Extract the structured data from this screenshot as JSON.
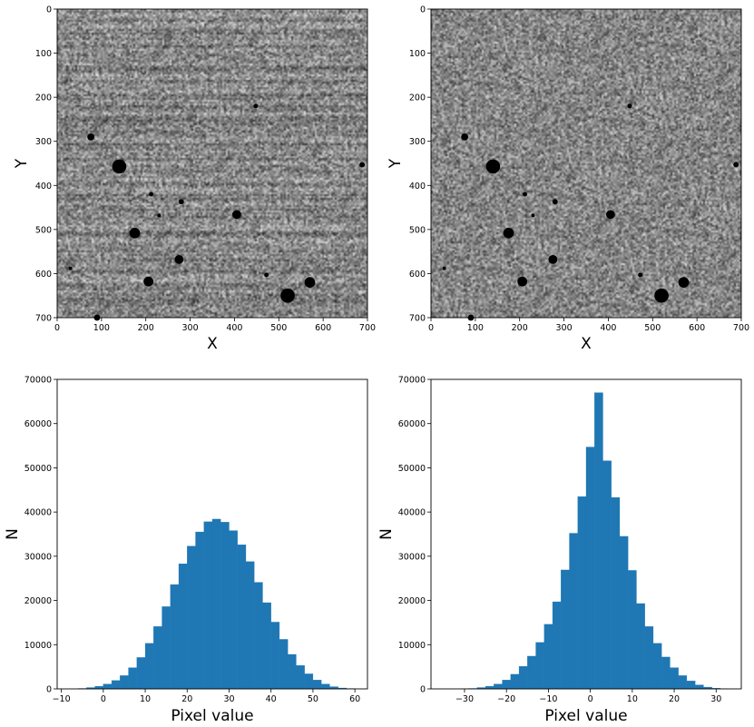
{
  "chart_data": [
    {
      "type": "heatmap",
      "title": "",
      "xlabel": "X",
      "ylabel": "Y",
      "xlim": [
        0,
        700
      ],
      "ylim": [
        700,
        0
      ],
      "xticks": [
        0,
        100,
        200,
        300,
        400,
        500,
        600,
        700
      ],
      "yticks": [
        0,
        100,
        200,
        300,
        400,
        500,
        600,
        700
      ],
      "colormap": "gray",
      "background": "striped noise",
      "sources": [
        {
          "x": 140,
          "y": 357,
          "r": 16
        },
        {
          "x": 520,
          "y": 650,
          "r": 16
        },
        {
          "x": 175,
          "y": 508,
          "r": 12
        },
        {
          "x": 570,
          "y": 620,
          "r": 12
        },
        {
          "x": 206,
          "y": 618,
          "r": 11
        },
        {
          "x": 405,
          "y": 466,
          "r": 10
        },
        {
          "x": 275,
          "y": 568,
          "r": 10
        },
        {
          "x": 76,
          "y": 290,
          "r": 8
        },
        {
          "x": 280,
          "y": 437,
          "r": 6
        },
        {
          "x": 212,
          "y": 420,
          "r": 5
        },
        {
          "x": 472,
          "y": 603,
          "r": 5
        },
        {
          "x": 448,
          "y": 220,
          "r": 5
        },
        {
          "x": 688,
          "y": 353,
          "r": 6
        },
        {
          "x": 90,
          "y": 700,
          "r": 7
        },
        {
          "x": 230,
          "y": 468,
          "r": 4
        },
        {
          "x": 30,
          "y": 588,
          "r": 4
        },
        {
          "x": 250,
          "y": 65,
          "r": 10,
          "faint": true
        }
      ]
    },
    {
      "type": "heatmap",
      "title": "",
      "xlabel": "X",
      "ylabel": "Y",
      "xlim": [
        0,
        700
      ],
      "ylim": [
        700,
        0
      ],
      "xticks": [
        0,
        100,
        200,
        300,
        400,
        500,
        600,
        700
      ],
      "yticks": [
        0,
        100,
        200,
        300,
        400,
        500,
        600,
        700
      ],
      "colormap": "gray",
      "background": "uniform noise",
      "sources": [
        {
          "x": 140,
          "y": 357,
          "r": 16
        },
        {
          "x": 520,
          "y": 650,
          "r": 16
        },
        {
          "x": 175,
          "y": 508,
          "r": 12
        },
        {
          "x": 570,
          "y": 620,
          "r": 12
        },
        {
          "x": 206,
          "y": 618,
          "r": 11
        },
        {
          "x": 405,
          "y": 466,
          "r": 10
        },
        {
          "x": 275,
          "y": 568,
          "r": 10
        },
        {
          "x": 76,
          "y": 290,
          "r": 8
        },
        {
          "x": 280,
          "y": 437,
          "r": 6
        },
        {
          "x": 212,
          "y": 420,
          "r": 5
        },
        {
          "x": 472,
          "y": 603,
          "r": 5
        },
        {
          "x": 448,
          "y": 220,
          "r": 5
        },
        {
          "x": 688,
          "y": 353,
          "r": 6
        },
        {
          "x": 90,
          "y": 700,
          "r": 7
        },
        {
          "x": 230,
          "y": 468,
          "r": 4
        },
        {
          "x": 30,
          "y": 588,
          "r": 4
        },
        {
          "x": 250,
          "y": 65,
          "r": 10,
          "faint": true
        }
      ]
    },
    {
      "type": "bar",
      "title": "",
      "xlabel": "Pixel value",
      "ylabel": "N",
      "xlim": [
        -11,
        63
      ],
      "ylim": [
        0,
        70000
      ],
      "xticks": [
        -10,
        0,
        10,
        20,
        30,
        40,
        50,
        60
      ],
      "yticks": [
        0,
        10000,
        20000,
        30000,
        40000,
        50000,
        60000,
        70000
      ],
      "color": "#1f77b4",
      "bin_width": 2.0,
      "bin_start": -6.0,
      "values": [
        100,
        300,
        600,
        1100,
        1900,
        3000,
        4800,
        7100,
        10300,
        14100,
        18600,
        23600,
        28300,
        32300,
        35500,
        37800,
        38400,
        37700,
        35800,
        32600,
        28800,
        24100,
        19500,
        15100,
        11200,
        7800,
        5300,
        3400,
        2000,
        1100,
        500,
        200,
        80
      ]
    },
    {
      "type": "bar",
      "title": "",
      "xlabel": "Pixel value",
      "ylabel": "N",
      "xlim": [
        -38,
        36
      ],
      "ylim": [
        0,
        70000
      ],
      "xticks": [
        -30,
        -20,
        -10,
        0,
        10,
        20,
        30
      ],
      "yticks": [
        0,
        10000,
        20000,
        30000,
        40000,
        50000,
        60000,
        70000
      ],
      "color": "#1f77b4",
      "bin_width": 2.0,
      "bin_start": -31.0,
      "values": [
        30,
        100,
        300,
        600,
        1100,
        2000,
        3300,
        5100,
        7400,
        10500,
        14600,
        19700,
        26900,
        35200,
        43500,
        54700,
        67000,
        51600,
        43300,
        34500,
        26800,
        19300,
        14100,
        10300,
        7200,
        4800,
        3000,
        1800,
        900,
        400,
        150,
        50
      ]
    }
  ]
}
